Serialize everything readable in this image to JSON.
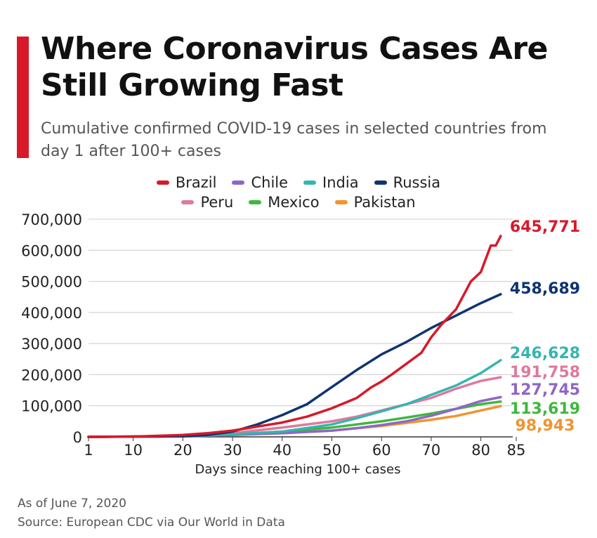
{
  "header": {
    "title": "Where Coronavirus Cases Are Still Growing Fast",
    "subtitle": "Cumulative confirmed COVID-19 cases in selected countries from day 1 after 100+ cases"
  },
  "footer": {
    "as_of": "As of June 7, 2020",
    "source": "Source: European CDC via Our World in Data"
  },
  "chart_data": {
    "type": "line",
    "title": "Where Coronavirus Cases Are Still Growing Fast",
    "subtitle": "Cumulative confirmed COVID-19 cases in selected countries from day 1 after 100+ cases",
    "xlabel": "Days since reaching 100+ cases",
    "ylabel": "",
    "xlim": [
      1,
      85
    ],
    "ylim": [
      0,
      700000
    ],
    "x_ticks": [
      1,
      10,
      20,
      30,
      40,
      50,
      60,
      70,
      80,
      85
    ],
    "y_ticks": [
      0,
      100000,
      200000,
      300000,
      400000,
      500000,
      600000,
      700000
    ],
    "y_tick_labels": [
      "0",
      "100,000",
      "200,000",
      "300,000",
      "400,000",
      "500,000",
      "600,000",
      "700,000"
    ],
    "grid": true,
    "legend_position": "top-center",
    "series": [
      {
        "name": "Brazil",
        "color": "#d7192a",
        "end_label": "645,771",
        "points": [
          [
            1,
            100
          ],
          [
            10,
            1000
          ],
          [
            20,
            6000
          ],
          [
            25,
            12000
          ],
          [
            30,
            20000
          ],
          [
            35,
            33000
          ],
          [
            40,
            46000
          ],
          [
            45,
            65000
          ],
          [
            50,
            92000
          ],
          [
            55,
            125000
          ],
          [
            58,
            160000
          ],
          [
            60,
            178000
          ],
          [
            62,
            200000
          ],
          [
            65,
            235000
          ],
          [
            68,
            270000
          ],
          [
            70,
            320000
          ],
          [
            72,
            360000
          ],
          [
            75,
            410000
          ],
          [
            78,
            500000
          ],
          [
            80,
            530000
          ],
          [
            82,
            615000
          ],
          [
            83,
            615000
          ],
          [
            84,
            645771
          ]
        ]
      },
      {
        "name": "Chile",
        "color": "#8e66c7",
        "end_label": "127,745",
        "points": [
          [
            1,
            100
          ],
          [
            20,
            2000
          ],
          [
            30,
            6000
          ],
          [
            40,
            12000
          ],
          [
            50,
            20000
          ],
          [
            55,
            28000
          ],
          [
            60,
            38000
          ],
          [
            65,
            50000
          ],
          [
            70,
            68000
          ],
          [
            75,
            90000
          ],
          [
            80,
            115000
          ],
          [
            84,
            127745
          ]
        ]
      },
      {
        "name": "India",
        "color": "#35b5b0",
        "end_label": "246,628",
        "points": [
          [
            1,
            100
          ],
          [
            20,
            2000
          ],
          [
            30,
            8000
          ],
          [
            40,
            17000
          ],
          [
            50,
            40000
          ],
          [
            55,
            60000
          ],
          [
            60,
            82000
          ],
          [
            65,
            105000
          ],
          [
            70,
            135000
          ],
          [
            75,
            165000
          ],
          [
            80,
            205000
          ],
          [
            84,
            246628
          ]
        ]
      },
      {
        "name": "Russia",
        "color": "#0f3470",
        "end_label": "458,689",
        "points": [
          [
            1,
            100
          ],
          [
            20,
            2000
          ],
          [
            25,
            6000
          ],
          [
            30,
            17000
          ],
          [
            35,
            40000
          ],
          [
            40,
            70000
          ],
          [
            45,
            105000
          ],
          [
            50,
            160000
          ],
          [
            55,
            215000
          ],
          [
            60,
            265000
          ],
          [
            65,
            305000
          ],
          [
            70,
            350000
          ],
          [
            75,
            390000
          ],
          [
            80,
            430000
          ],
          [
            84,
            458689
          ]
        ]
      },
      {
        "name": "Peru",
        "color": "#e0799c",
        "end_label": "191,758",
        "points": [
          [
            1,
            100
          ],
          [
            20,
            1500
          ],
          [
            30,
            12000
          ],
          [
            40,
            30000
          ],
          [
            50,
            50000
          ],
          [
            55,
            65000
          ],
          [
            60,
            85000
          ],
          [
            65,
            105000
          ],
          [
            70,
            125000
          ],
          [
            75,
            155000
          ],
          [
            80,
            180000
          ],
          [
            84,
            191758
          ]
        ]
      },
      {
        "name": "Mexico",
        "color": "#3eb83c",
        "end_label": "113,619",
        "points": [
          [
            1,
            100
          ],
          [
            20,
            2000
          ],
          [
            30,
            8000
          ],
          [
            40,
            17000
          ],
          [
            50,
            30000
          ],
          [
            55,
            40000
          ],
          [
            60,
            50000
          ],
          [
            65,
            62000
          ],
          [
            70,
            75000
          ],
          [
            75,
            90000
          ],
          [
            80,
            105000
          ],
          [
            84,
            113619
          ]
        ]
      },
      {
        "name": "Pakistan",
        "color": "#f0942f",
        "end_label": "98,943",
        "points": [
          [
            1,
            100
          ],
          [
            20,
            2000
          ],
          [
            30,
            6000
          ],
          [
            40,
            12000
          ],
          [
            50,
            20000
          ],
          [
            55,
            28000
          ],
          [
            60,
            35000
          ],
          [
            65,
            45000
          ],
          [
            70,
            55000
          ],
          [
            75,
            67000
          ],
          [
            80,
            85000
          ],
          [
            84,
            98943
          ]
        ]
      }
    ]
  }
}
